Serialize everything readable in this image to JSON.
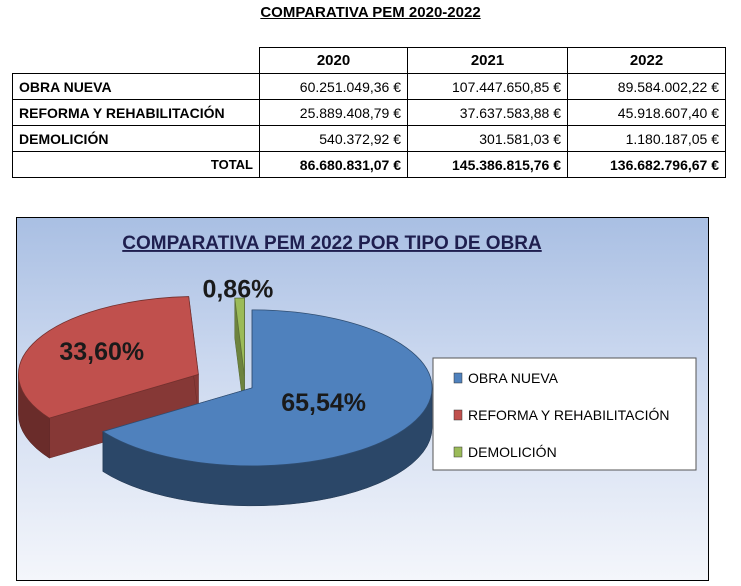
{
  "page": {
    "title": "COMPARATIVA PEM 2020-2022"
  },
  "table": {
    "headers": [
      "2020",
      "2021",
      "2022"
    ],
    "rows": [
      {
        "label": "OBRA NUEVA",
        "values": [
          "60.251.049,36 €",
          "107.447.650,85 €",
          "89.584.002,22 €"
        ]
      },
      {
        "label": "REFORMA Y REHABILITACIÓN",
        "values": [
          "25.889.408,79 €",
          "37.637.583,88 €",
          "45.918.607,40 €"
        ]
      },
      {
        "label": "DEMOLICIÓN",
        "values": [
          "540.372,92 €",
          "301.581,03 €",
          "1.180.187,05 €"
        ]
      }
    ],
    "total": {
      "label": "TOTAL",
      "values": [
        "86.680.831,07 €",
        "145.386.815,76 €",
        "136.682.796,67 €"
      ]
    }
  },
  "chart_data": {
    "type": "pie",
    "title": "COMPARATIVA PEM 2022 POR TIPO DE OBRA",
    "categories": [
      "OBRA NUEVA",
      "REFORMA Y REHABILITACIÓN",
      "DEMOLICIÓN"
    ],
    "values": [
      65.54,
      33.6,
      0.86
    ],
    "labels": [
      "65,54%",
      "33,60%",
      "0,86%"
    ],
    "colors": [
      "#4f81bd",
      "#c0504d",
      "#9bbb59"
    ],
    "style": "3d-exploded",
    "legend_position": "right"
  }
}
